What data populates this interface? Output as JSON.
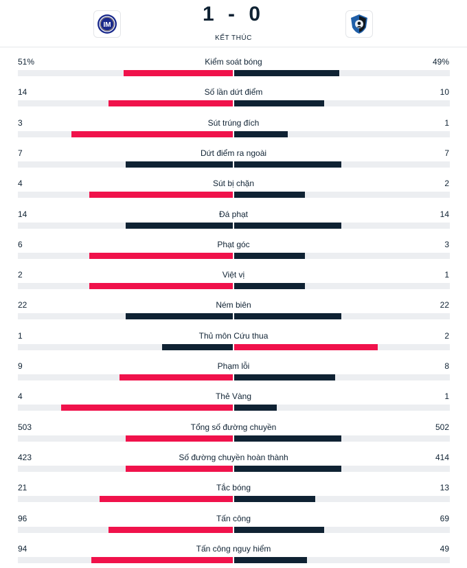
{
  "header": {
    "score": "1 - 0",
    "status": "KẾT THÚC",
    "home_logo_icon": "inter-crest-icon",
    "away_logo_icon": "atalanta-crest-icon"
  },
  "colors": {
    "home": "#f0124b",
    "away": "#0f2233",
    "track": "#eceef1"
  },
  "stats": [
    {
      "label": "Kiểm soát bóng",
      "home": "51%",
      "away": "49%",
      "home_share": 0.51,
      "away_share": 0.49,
      "home_color": "red",
      "away_color": "navy"
    },
    {
      "label": "Số lần dứt điểm",
      "home": "14",
      "away": "10",
      "home_share": 0.58,
      "away_share": 0.42,
      "home_color": "red",
      "away_color": "navy"
    },
    {
      "label": "Sút trúng đích",
      "home": "3",
      "away": "1",
      "home_share": 0.75,
      "away_share": 0.25,
      "home_color": "red",
      "away_color": "navy"
    },
    {
      "label": "Dứt điểm ra ngoài",
      "home": "7",
      "away": "7",
      "home_share": 0.5,
      "away_share": 0.5,
      "home_color": "navy",
      "away_color": "navy"
    },
    {
      "label": "Sút bị chặn",
      "home": "4",
      "away": "2",
      "home_share": 0.67,
      "away_share": 0.33,
      "home_color": "red",
      "away_color": "navy"
    },
    {
      "label": "Đá phạt",
      "home": "14",
      "away": "14",
      "home_share": 0.5,
      "away_share": 0.5,
      "home_color": "navy",
      "away_color": "navy"
    },
    {
      "label": "Phạt góc",
      "home": "6",
      "away": "3",
      "home_share": 0.67,
      "away_share": 0.33,
      "home_color": "red",
      "away_color": "navy"
    },
    {
      "label": "Việt vị",
      "home": "2",
      "away": "1",
      "home_share": 0.67,
      "away_share": 0.33,
      "home_color": "red",
      "away_color": "navy"
    },
    {
      "label": "Ném biên",
      "home": "22",
      "away": "22",
      "home_share": 0.5,
      "away_share": 0.5,
      "home_color": "navy",
      "away_color": "navy"
    },
    {
      "label": "Thủ môn Cứu thua",
      "home": "1",
      "away": "2",
      "home_share": 0.33,
      "away_share": 0.67,
      "home_color": "navy",
      "away_color": "red"
    },
    {
      "label": "Phạm lỗi",
      "home": "9",
      "away": "8",
      "home_share": 0.53,
      "away_share": 0.47,
      "home_color": "red",
      "away_color": "navy"
    },
    {
      "label": "Thẻ Vàng",
      "home": "4",
      "away": "1",
      "home_share": 0.8,
      "away_share": 0.2,
      "home_color": "red",
      "away_color": "navy"
    },
    {
      "label": "Tổng số đường chuyền",
      "home": "503",
      "away": "502",
      "home_share": 0.5,
      "away_share": 0.5,
      "home_color": "red",
      "away_color": "navy"
    },
    {
      "label": "Số đường chuyền hoàn thành",
      "home": "423",
      "away": "414",
      "home_share": 0.5,
      "away_share": 0.5,
      "home_color": "red",
      "away_color": "navy"
    },
    {
      "label": "Tắc bóng",
      "home": "21",
      "away": "13",
      "home_share": 0.62,
      "away_share": 0.38,
      "home_color": "red",
      "away_color": "navy"
    },
    {
      "label": "Tấn công",
      "home": "96",
      "away": "69",
      "home_share": 0.58,
      "away_share": 0.42,
      "home_color": "red",
      "away_color": "navy"
    },
    {
      "label": "Tấn công nguy hiểm",
      "home": "94",
      "away": "49",
      "home_share": 0.66,
      "away_share": 0.34,
      "home_color": "red",
      "away_color": "navy"
    }
  ]
}
